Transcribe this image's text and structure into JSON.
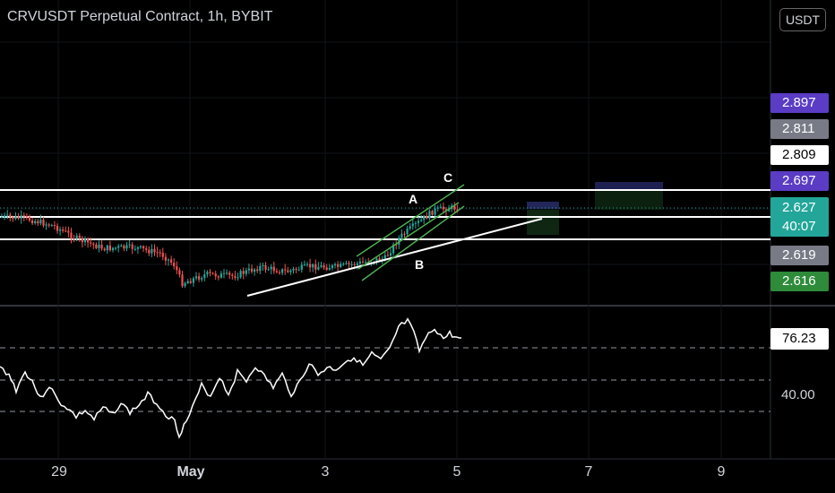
{
  "header": {
    "title": "CRVUSDT Perpetual Contract, 1h, BYBIT",
    "currency_button": "USDT"
  },
  "colors": {
    "background": "#000000",
    "bull": "#26a69a",
    "bear": "#ef5350",
    "drawing": "#ffffff",
    "channel": "#4caf50",
    "tag_purple": "#5b3cc4",
    "tag_gray": "#787b86",
    "tag_teal": "#22a699",
    "tag_green": "#2e8b3a"
  },
  "price_axis": {
    "tags": [
      {
        "id": "purple",
        "value": "2.897",
        "bg": "#5b3cc4",
        "fg": "#ffffff"
      },
      {
        "id": "gray-1",
        "value": "2.811",
        "bg": "#787b86",
        "fg": "#ffffff"
      },
      {
        "id": "white",
        "value": "2.809",
        "bg": "#ffffff",
        "fg": "#000000"
      },
      {
        "id": "purple-2",
        "value": "2.697",
        "bg": "#5b3cc4",
        "fg": "#ffffff"
      },
      {
        "id": "last",
        "value": "2.627",
        "countdown": "40:07",
        "bg": "#22a699",
        "fg": "#ffffff"
      },
      {
        "id": "gray-2",
        "value": "2.619",
        "bg": "#787b86",
        "fg": "#ffffff"
      },
      {
        "id": "green",
        "value": "2.616",
        "bg": "#2e8b3a",
        "fg": "#ffffff"
      }
    ]
  },
  "rsi": {
    "current_value": "76.23",
    "level_label": "40.00"
  },
  "x_axis": {
    "ticks": [
      "29",
      "May",
      "3",
      "5",
      "7",
      "9"
    ]
  },
  "wave_labels": {
    "a": "A",
    "b": "B",
    "c": "C"
  },
  "chart_data": [
    {
      "type": "candlestick",
      "title": "CRVUSDT Perpetual Contract, 1h, BYBIT",
      "x_ticks": [
        "29",
        "May",
        "3",
        "5",
        "7",
        "9"
      ],
      "y_axis_labels_visible": [
        "2.897",
        "2.811",
        "2.809",
        "2.697",
        "2.627",
        "2.619",
        "2.616"
      ],
      "horizontal_levels": [
        2.697,
        2.627,
        2.566
      ],
      "last_price": 2.627,
      "trend": "decline from about 2.63 on Apr 28 to about 2.47 near May 1, then rising channel to about 2.67 by May 4-5",
      "annotations": [
        "A",
        "B",
        "C"
      ]
    },
    {
      "type": "line",
      "title": "RSI",
      "current_value": 76.23,
      "levels": [
        70,
        50,
        30
      ],
      "y_label_visible": "40.00"
    }
  ]
}
